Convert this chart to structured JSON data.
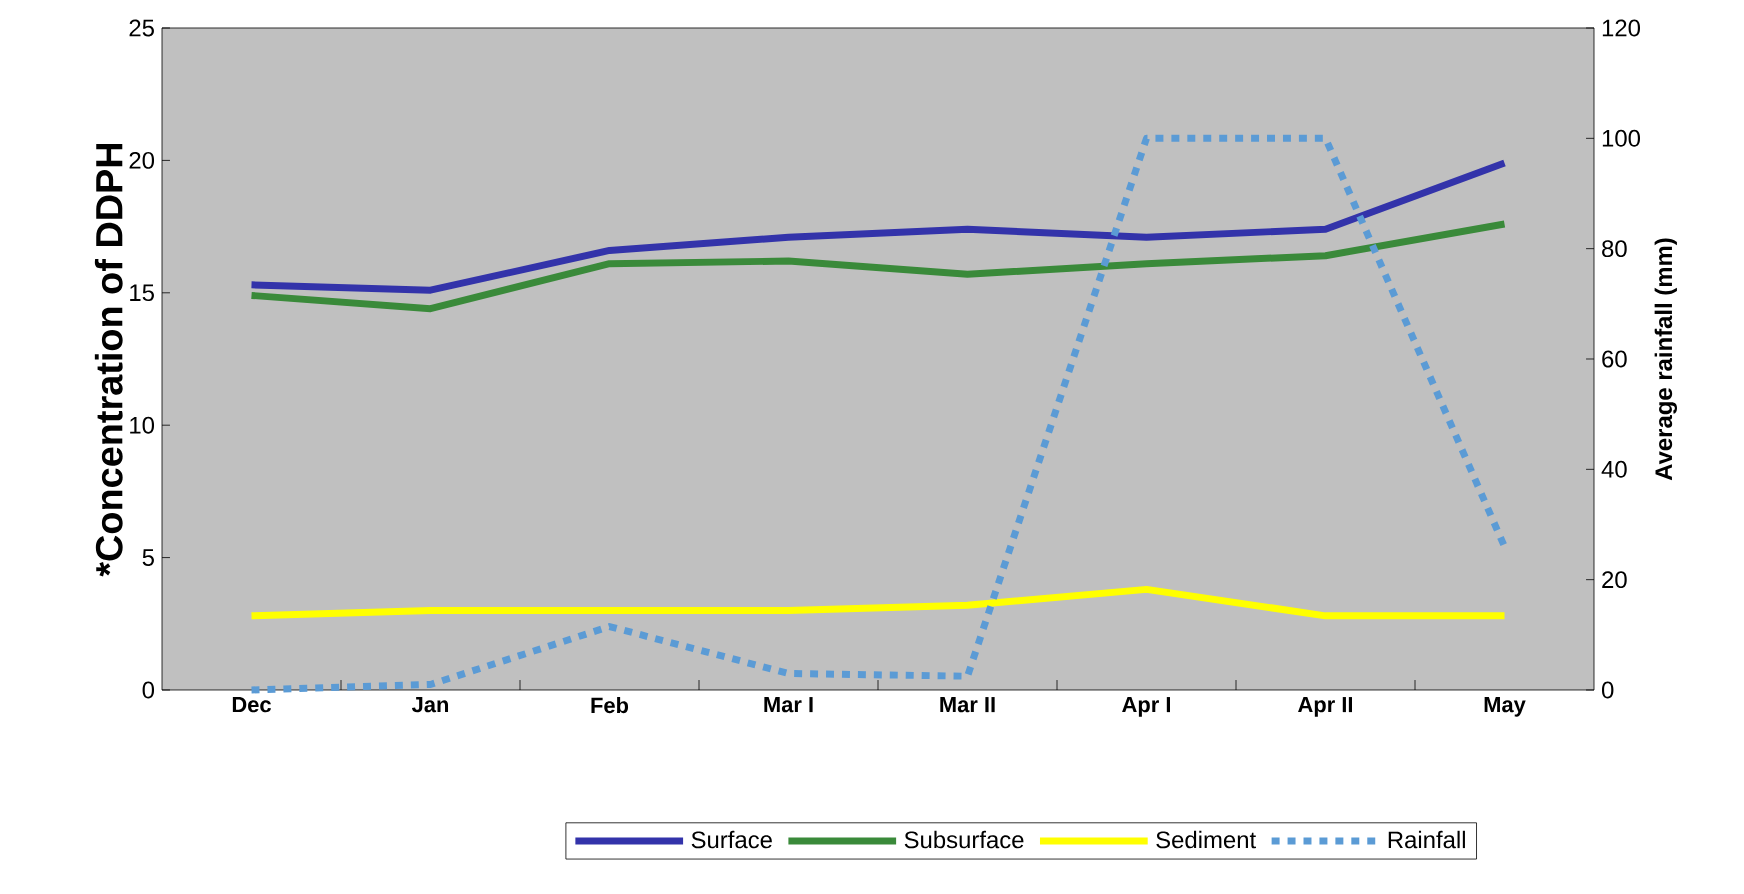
{
  "chart_data": {
    "type": "line",
    "ylabel": "*Concentration of DDPH",
    "y2label": "Average rainfall (mm)",
    "categories": [
      "Dec",
      "Jan",
      "Feb",
      "Mar I",
      "Mar II",
      "Apr I",
      "Apr II",
      "May"
    ],
    "series": [
      {
        "name": "Surface",
        "color": "#3333aa",
        "values": [
          15.3,
          15.1,
          16.6,
          17.1,
          17.4,
          17.1,
          17.4,
          19.9
        ]
      },
      {
        "name": "Subsurface",
        "color": "#3a8a3a",
        "values": [
          14.9,
          14.4,
          16.1,
          16.2,
          15.7,
          16.1,
          16.4,
          17.6
        ]
      },
      {
        "name": "Sediment",
        "color": "#ffff00",
        "values": [
          2.8,
          3.0,
          3.0,
          3.0,
          3.2,
          3.8,
          2.8,
          2.8
        ]
      },
      {
        "name": "Rainfall",
        "color": "#5b9bd5",
        "axis": "y2",
        "line_style": "dashed",
        "values": [
          0,
          1,
          11.5,
          3,
          2.5,
          100,
          100,
          26
        ]
      }
    ],
    "ylim": [
      0,
      25
    ],
    "yticks": [
      0,
      5,
      10,
      15,
      20,
      25
    ],
    "y2lim": [
      0,
      120
    ],
    "y2ticks": [
      0,
      20,
      40,
      60,
      80,
      100,
      120
    ],
    "grid": false,
    "legend": "bottom",
    "marker": "none"
  }
}
